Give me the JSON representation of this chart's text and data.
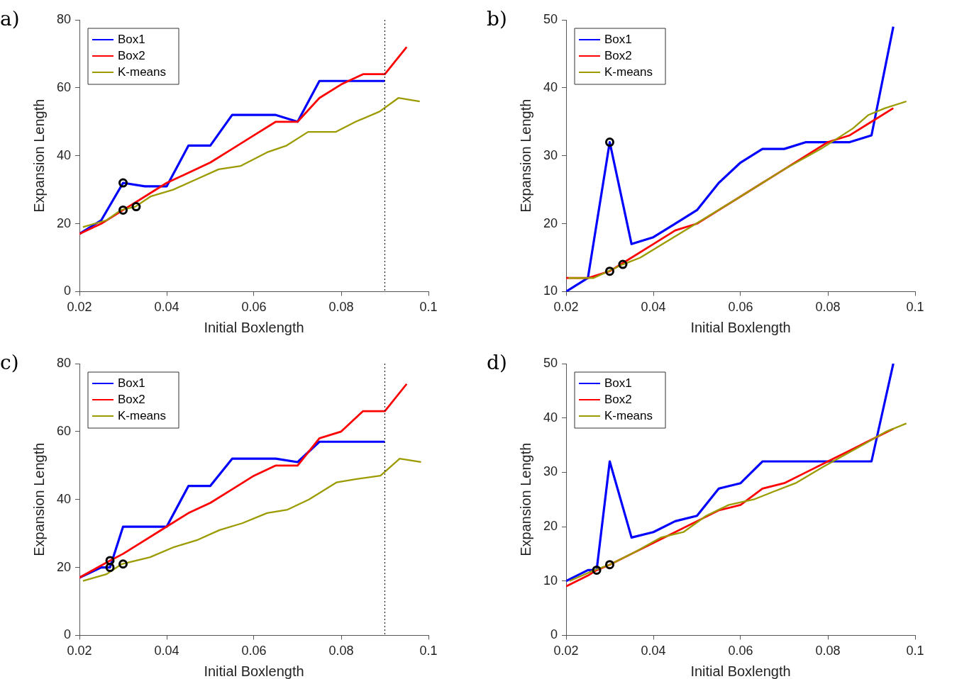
{
  "chart_data": [
    {
      "type": "line",
      "title": "a)",
      "xlabel": "Initial Boxlength",
      "ylabel": "Expansion Length",
      "xlim": [
        0.02,
        0.1
      ],
      "xticks": [
        0.02,
        0.04,
        0.06,
        0.08,
        0.1
      ],
      "ylim": [
        0,
        80
      ],
      "yticks": [
        0,
        20,
        40,
        60,
        80
      ],
      "grid": false,
      "legend": "top left",
      "marker": "none",
      "line_style": "solid",
      "series": [
        {
          "name": "Box1",
          "color": "#0000ff",
          "x": [
            0.02,
            0.025,
            0.03,
            0.035,
            0.04,
            0.045,
            0.05,
            0.055,
            0.06,
            0.065,
            0.07,
            0.075,
            0.08,
            0.085,
            0.09
          ],
          "values": [
            17,
            21,
            32,
            31,
            31,
            43,
            43,
            52,
            52,
            52,
            50,
            62,
            62,
            62,
            62
          ]
        },
        {
          "name": "Box2",
          "color": "#ff0000",
          "x": [
            0.02,
            0.025,
            0.03,
            0.035,
            0.04,
            0.045,
            0.05,
            0.055,
            0.06,
            0.065,
            0.07,
            0.075,
            0.08,
            0.085,
            0.09,
            0.095
          ],
          "values": [
            17,
            20,
            24,
            28,
            32,
            35,
            38,
            42,
            46,
            50,
            50,
            57,
            61,
            64,
            64,
            72
          ]
        },
        {
          "name": "K-means",
          "color": "#9b9b00",
          "x": [
            0.0208,
            0.0262,
            0.0295,
            0.0328,
            0.0363,
            0.0415,
            0.0467,
            0.0519,
            0.057,
            0.063,
            0.0675,
            0.0724,
            0.0787,
            0.0833,
            0.0888,
            0.0931,
            0.098
          ],
          "values": [
            19,
            21,
            24,
            25,
            28,
            30,
            33,
            36,
            37,
            41,
            43,
            47,
            47,
            50,
            53,
            57,
            56
          ]
        },
        {
          "type": "scatter",
          "color": "#000000",
          "marker": "circle",
          "x": [
            0.03,
            0.03,
            0.033
          ],
          "values": [
            32,
            24,
            25
          ]
        }
      ],
      "ref_lines": [
        {
          "axis": "x",
          "value": 0.09,
          "color": "#000000",
          "line_style": "dotted"
        }
      ]
    },
    {
      "type": "line",
      "title": "b)",
      "xlabel": "Initial Boxlength",
      "ylabel": "Expansion Length",
      "xlim": [
        0.02,
        0.1
      ],
      "xticks": [
        0.02,
        0.04,
        0.06,
        0.08,
        0.1
      ],
      "ylim": [
        10,
        50
      ],
      "yticks": [
        10,
        20,
        30,
        40,
        50
      ],
      "grid": false,
      "legend": "top left",
      "marker": "none",
      "line_style": "solid",
      "series": [
        {
          "name": "Box1",
          "color": "#0000ff",
          "x": [
            0.02,
            0.025,
            0.03,
            0.035,
            0.04,
            0.045,
            0.05,
            0.055,
            0.06,
            0.065,
            0.07,
            0.075,
            0.08,
            0.085,
            0.09,
            0.095
          ],
          "values": [
            10,
            12,
            32,
            17,
            18,
            20,
            22,
            26,
            29,
            31,
            31,
            32,
            32,
            32,
            33,
            49
          ]
        },
        {
          "name": "Box2",
          "color": "#ff0000",
          "x": [
            0.02,
            0.025,
            0.03,
            0.035,
            0.04,
            0.045,
            0.05,
            0.055,
            0.06,
            0.065,
            0.07,
            0.075,
            0.08,
            0.085,
            0.09,
            0.095
          ],
          "values": [
            12,
            12,
            13,
            15,
            17,
            19,
            20,
            22,
            24,
            26,
            28,
            30,
            32,
            33,
            35,
            37
          ]
        },
        {
          "name": "K-means",
          "color": "#9b9b00",
          "x": [
            0.0205,
            0.0263,
            0.0297,
            0.033,
            0.037,
            0.06,
            0.07,
            0.0784,
            0.0857,
            0.0893,
            0.0931,
            0.098
          ],
          "values": [
            12,
            12,
            13,
            14,
            15,
            24,
            28,
            31,
            34,
            36,
            37,
            38
          ]
        },
        {
          "type": "scatter",
          "color": "#000000",
          "marker": "circle",
          "x": [
            0.03,
            0.03,
            0.033
          ],
          "values": [
            32,
            13,
            14
          ]
        }
      ]
    },
    {
      "type": "line",
      "title": "c)",
      "xlabel": "Initial Boxlength",
      "ylabel": "Expansion Length",
      "xlim": [
        0.02,
        0.1
      ],
      "xticks": [
        0.02,
        0.04,
        0.06,
        0.08,
        0.1
      ],
      "ylim": [
        0,
        80
      ],
      "yticks": [
        0,
        20,
        40,
        60,
        80
      ],
      "grid": false,
      "legend": "top left",
      "marker": "none",
      "line_style": "solid",
      "series": [
        {
          "name": "Box1",
          "color": "#0000ff",
          "x": [
            0.02,
            0.025,
            0.027,
            0.03,
            0.035,
            0.04,
            0.045,
            0.05,
            0.055,
            0.06,
            0.065,
            0.07,
            0.075,
            0.08,
            0.085,
            0.09
          ],
          "values": [
            17,
            20,
            20,
            32,
            32,
            32,
            44,
            44,
            52,
            52,
            52,
            51,
            57,
            57,
            57,
            57
          ]
        },
        {
          "name": "Box2",
          "color": "#ff0000",
          "x": [
            0.02,
            0.027,
            0.03,
            0.04,
            0.045,
            0.05,
            0.055,
            0.06,
            0.065,
            0.07,
            0.075,
            0.08,
            0.085,
            0.09,
            0.095
          ],
          "values": [
            17,
            22,
            24,
            32,
            36,
            39,
            43,
            47,
            50,
            50,
            58,
            60,
            66,
            66,
            74
          ]
        },
        {
          "name": "K-means",
          "color": "#9b9b00",
          "x": [
            0.0208,
            0.0262,
            0.0297,
            0.0362,
            0.0417,
            0.0469,
            0.0521,
            0.0573,
            0.063,
            0.0677,
            0.0726,
            0.0789,
            0.0835,
            0.089,
            0.0934,
            0.0983
          ],
          "values": [
            16,
            18,
            21,
            23,
            26,
            28,
            31,
            33,
            36,
            37,
            40,
            45,
            46,
            47,
            52,
            51
          ]
        },
        {
          "type": "scatter",
          "color": "#000000",
          "marker": "circle",
          "x": [
            0.027,
            0.027,
            0.03
          ],
          "values": [
            22,
            20,
            21
          ]
        }
      ],
      "ref_lines": [
        {
          "axis": "x",
          "value": 0.09,
          "color": "#000000",
          "line_style": "dotted"
        }
      ]
    },
    {
      "type": "line",
      "title": "d)",
      "xlabel": "Initial Boxlength",
      "ylabel": "Expansion Length",
      "xlim": [
        0.02,
        0.1
      ],
      "xticks": [
        0.02,
        0.04,
        0.06,
        0.08,
        0.1
      ],
      "ylim": [
        0,
        50
      ],
      "yticks": [
        0,
        10,
        20,
        30,
        40,
        50
      ],
      "grid": false,
      "legend": "top left",
      "marker": "none",
      "line_style": "solid",
      "series": [
        {
          "name": "Box1",
          "color": "#0000ff",
          "x": [
            0.02,
            0.025,
            0.027,
            0.03,
            0.035,
            0.04,
            0.045,
            0.05,
            0.055,
            0.06,
            0.065,
            0.07,
            0.075,
            0.08,
            0.085,
            0.09,
            0.095
          ],
          "values": [
            10,
            12,
            12,
            32,
            18,
            19,
            21,
            22,
            27,
            28,
            32,
            32,
            32,
            32,
            32,
            32,
            50
          ]
        },
        {
          "name": "Box2",
          "color": "#ff0000",
          "x": [
            0.02,
            0.025,
            0.027,
            0.03,
            0.035,
            0.04,
            0.045,
            0.05,
            0.055,
            0.06,
            0.065,
            0.07,
            0.075,
            0.08,
            0.085,
            0.09,
            0.095
          ],
          "values": [
            9,
            11,
            12,
            13,
            15,
            17,
            19,
            21,
            23,
            24,
            27,
            28,
            30,
            32,
            34,
            36,
            38
          ]
        },
        {
          "name": "K-means",
          "color": "#9b9b00",
          "x": [
            0.0208,
            0.0265,
            0.03,
            0.0362,
            0.0417,
            0.0469,
            0.0521,
            0.0573,
            0.063,
            0.0677,
            0.0726,
            0.0789,
            0.089,
            0.0934,
            0.098
          ],
          "values": [
            10,
            12,
            13,
            15.5,
            18,
            19,
            22,
            24,
            25,
            26.5,
            28,
            31,
            35.5,
            37.5,
            39
          ]
        },
        {
          "type": "scatter",
          "color": "#000000",
          "marker": "circle",
          "x": [
            0.027,
            0.03
          ],
          "values": [
            12,
            13
          ]
        }
      ]
    }
  ]
}
